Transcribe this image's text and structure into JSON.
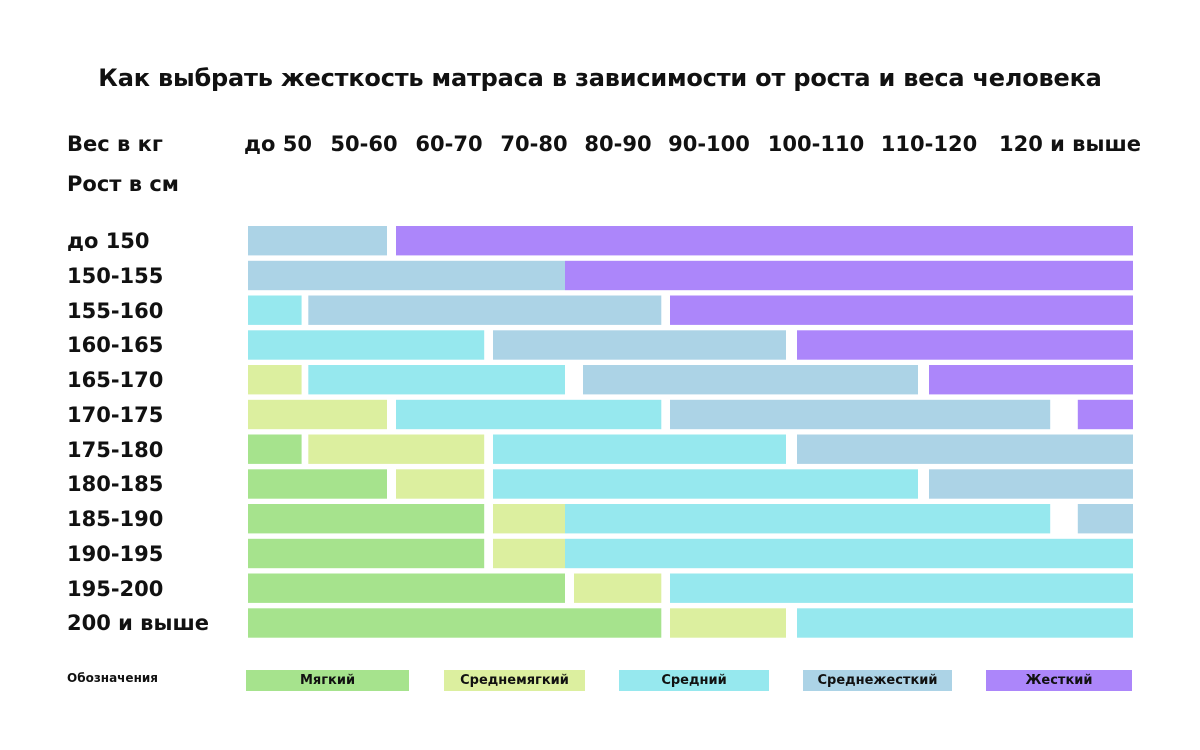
{
  "chart_data": {
    "type": "heatmap",
    "title": "Как выбрать жесткость матраса в зависимости от роста и веса человека",
    "xlabel": "Вес в кг",
    "ylabel": "Рост в см",
    "weight_categories": [
      "до 50",
      "50-60",
      "60-70",
      "70-80",
      "80-90",
      "90-100",
      "100-110",
      "110-120",
      "120 и выше"
    ],
    "height_categories": [
      "до 150",
      "150-155",
      "155-160",
      "160-165",
      "165-170",
      "170-175",
      "175-180",
      "180-185",
      "185-190",
      "190-195",
      "195-200",
      "200 и выше"
    ],
    "legend_title": "Обозначения",
    "levels": [
      {
        "key": "soft",
        "name": "Мягкий",
        "color": "#a6e38d"
      },
      {
        "key": "medsoft",
        "name": "Среднемягкий",
        "color": "#dcef9f"
      },
      {
        "key": "medium",
        "name": "Средний",
        "color": "#96e8ee"
      },
      {
        "key": "medhard",
        "name": "Среднежесткий",
        "color": "#acd3e6"
      },
      {
        "key": "hard",
        "name": "Жесткий",
        "color": "#ac86fa"
      }
    ],
    "rows": [
      {
        "height": "до 150",
        "segments": [
          {
            "level": "medhard",
            "from": 0,
            "to": 1.8
          },
          {
            "level": "hard",
            "from": 1.9,
            "to": 9
          }
        ]
      },
      {
        "height": "150-155",
        "segments": [
          {
            "level": "medhard",
            "from": 0,
            "to": 3.8
          },
          {
            "level": "hard",
            "from": 3.8,
            "to": 9
          }
        ]
      },
      {
        "height": "155-160",
        "segments": [
          {
            "level": "medium",
            "from": 0,
            "to": 0.8
          },
          {
            "level": "medhard",
            "from": 0.9,
            "to": 4.9
          },
          {
            "level": "hard",
            "from": 5,
            "to": 9
          }
        ]
      },
      {
        "height": "160-165",
        "segments": [
          {
            "level": "medium",
            "from": 0,
            "to": 2.9
          },
          {
            "level": "medhard",
            "from": 3,
            "to": 6.1
          },
          {
            "level": "hard",
            "from": 6.2,
            "to": 9
          }
        ]
      },
      {
        "height": "165-170",
        "segments": [
          {
            "level": "medsoft",
            "from": 0,
            "to": 0.8
          },
          {
            "level": "medium",
            "from": 0.9,
            "to": 3.8
          },
          {
            "level": "medhard",
            "from": 4,
            "to": 7.3
          },
          {
            "level": "hard",
            "from": 7.4,
            "to": 9
          }
        ]
      },
      {
        "height": "170-175",
        "segments": [
          {
            "level": "medsoft",
            "from": 0,
            "to": 1.8
          },
          {
            "level": "medium",
            "from": 1.9,
            "to": 4.9
          },
          {
            "level": "medhard",
            "from": 5,
            "to": 8.4
          },
          {
            "level": "hard",
            "from": 8.6,
            "to": 9
          }
        ]
      },
      {
        "height": "175-180",
        "segments": [
          {
            "level": "soft",
            "from": 0,
            "to": 0.8
          },
          {
            "level": "medsoft",
            "from": 0.9,
            "to": 2.9
          },
          {
            "level": "medium",
            "from": 3,
            "to": 6.1
          },
          {
            "level": "medhard",
            "from": 6.2,
            "to": 9
          }
        ]
      },
      {
        "height": "180-185",
        "segments": [
          {
            "level": "soft",
            "from": 0,
            "to": 1.8
          },
          {
            "level": "medsoft",
            "from": 1.9,
            "to": 2.9
          },
          {
            "level": "medium",
            "from": 3,
            "to": 7.3
          },
          {
            "level": "medhard",
            "from": 7.4,
            "to": 9
          }
        ]
      },
      {
        "height": "185-190",
        "segments": [
          {
            "level": "soft",
            "from": 0,
            "to": 2.9
          },
          {
            "level": "medsoft",
            "from": 3,
            "to": 3.8
          },
          {
            "level": "medium",
            "from": 3.8,
            "to": 8.4
          },
          {
            "level": "medhard",
            "from": 8.6,
            "to": 9
          }
        ]
      },
      {
        "height": "190-195",
        "segments": [
          {
            "level": "soft",
            "from": 0,
            "to": 2.9
          },
          {
            "level": "medsoft",
            "from": 3,
            "to": 3.8
          },
          {
            "level": "medium",
            "from": 3.8,
            "to": 9
          }
        ]
      },
      {
        "height": "195-200",
        "segments": [
          {
            "level": "soft",
            "from": 0,
            "to": 3.8
          },
          {
            "level": "medsoft",
            "from": 3.9,
            "to": 4.9
          },
          {
            "level": "medium",
            "from": 5,
            "to": 9
          }
        ]
      },
      {
        "height": "200 и выше",
        "segments": [
          {
            "level": "soft",
            "from": 0,
            "to": 4.9
          },
          {
            "level": "medsoft",
            "from": 5,
            "to": 6.1
          },
          {
            "level": "medium",
            "from": 6.2,
            "to": 9
          }
        ]
      }
    ]
  }
}
